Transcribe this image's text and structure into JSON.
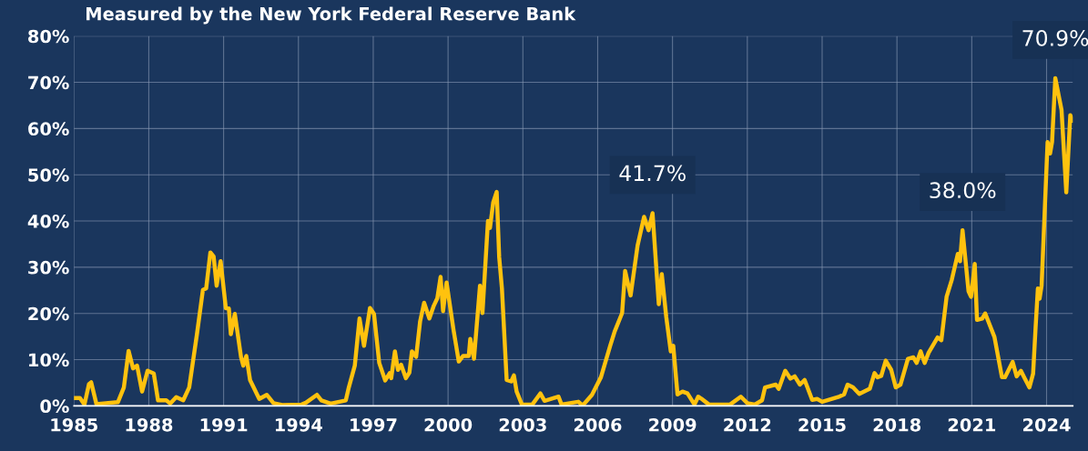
{
  "chart_data": {
    "type": "line",
    "title": "Measured by the New York Federal Reserve Bank",
    "x": [
      1985.0,
      1985.24,
      1985.42,
      1985.6,
      1985.69,
      1985.9,
      1986.76,
      1987.0,
      1987.19,
      1987.37,
      1987.53,
      1987.73,
      1987.95,
      1988.2,
      1988.37,
      1988.7,
      1988.86,
      1989.1,
      1989.38,
      1989.62,
      1989.93,
      1990.17,
      1990.3,
      1990.47,
      1990.6,
      1990.72,
      1990.88,
      1991.09,
      1991.21,
      1991.29,
      1991.45,
      1991.7,
      1991.79,
      1991.91,
      1992.06,
      1992.43,
      1992.73,
      1993.0,
      1993.35,
      1994.13,
      1994.3,
      1994.74,
      1994.92,
      1995.29,
      1995.9,
      1996.02,
      1996.26,
      1996.45,
      1996.63,
      1996.87,
      1997.03,
      1997.24,
      1997.48,
      1997.66,
      1997.72,
      1997.87,
      1997.99,
      1998.12,
      1998.31,
      1998.45,
      1998.55,
      1998.72,
      1998.88,
      1999.04,
      1999.25,
      1999.43,
      1999.57,
      1999.7,
      1999.8,
      1999.94,
      2000.22,
      2000.43,
      2000.6,
      2000.83,
      2000.89,
      2001.04,
      2001.28,
      2001.38,
      2001.6,
      2001.68,
      2001.81,
      2001.95,
      2002.05,
      2002.16,
      2002.35,
      2002.53,
      2002.64,
      2002.75,
      2002.96,
      2003.38,
      2003.7,
      2003.87,
      2004.43,
      2004.55,
      2005.22,
      2005.4,
      2005.77,
      2006.13,
      2006.5,
      2006.68,
      2006.98,
      2007.1,
      2007.32,
      2007.6,
      2007.86,
      2008.04,
      2008.2,
      2008.45,
      2008.57,
      2008.75,
      2008.93,
      2009.03,
      2009.2,
      2009.4,
      2009.6,
      2009.88,
      2010.03,
      2010.15,
      2010.46,
      2011.31,
      2011.74,
      2012.0,
      2012.3,
      2012.59,
      2012.71,
      2013.14,
      2013.26,
      2013.52,
      2013.73,
      2013.9,
      2014.11,
      2014.3,
      2014.6,
      2014.8,
      2015.0,
      2015.64,
      2015.88,
      2016.02,
      2016.24,
      2016.49,
      2016.91,
      2017.1,
      2017.22,
      2017.37,
      2017.55,
      2017.77,
      2017.95,
      2018.14,
      2018.44,
      2018.66,
      2018.79,
      2018.95,
      2019.11,
      2019.27,
      2019.63,
      2019.78,
      2019.99,
      2020.2,
      2020.44,
      2020.53,
      2020.63,
      2020.87,
      2020.97,
      2021.12,
      2021.21,
      2021.42,
      2021.54,
      2021.91,
      2022.21,
      2022.33,
      2022.64,
      2022.8,
      2022.97,
      2023.13,
      2023.31,
      2023.46,
      2023.56,
      2023.65,
      2023.72,
      2023.8,
      2024.04,
      2024.14,
      2024.22,
      2024.35,
      2024.51,
      2024.6,
      2024.79,
      2024.95,
      2025.05
    ],
    "series": [
      {
        "color": "#ffc20e",
        "values": [
          1.7,
          1.7,
          0.3,
          4.7,
          5.1,
          0.4,
          0.8,
          4.0,
          11.9,
          8.1,
          8.7,
          3.1,
          7.6,
          7.0,
          1.2,
          1.2,
          0.5,
          1.9,
          1.2,
          4.0,
          15.5,
          25.1,
          25.4,
          33.2,
          32.3,
          26.0,
          31.3,
          21.1,
          21.1,
          15.5,
          19.9,
          10.5,
          8.7,
          10.8,
          5.6,
          1.5,
          2.4,
          0.6,
          0.2,
          0.3,
          0.7,
          2.4,
          1.2,
          0.5,
          1.2,
          4.0,
          8.7,
          18.9,
          13.0,
          21.2,
          19.9,
          9.3,
          5.5,
          7.1,
          6.0,
          11.8,
          7.8,
          8.9,
          6.0,
          7.2,
          11.8,
          10.6,
          18.3,
          22.3,
          18.9,
          21.7,
          23.3,
          27.9,
          20.5,
          26.7,
          16.4,
          9.6,
          10.8,
          10.8,
          14.5,
          10.2,
          26.0,
          20.1,
          40.0,
          38.5,
          44.0,
          46.3,
          32.2,
          25.4,
          5.6,
          5.3,
          6.6,
          3.1,
          0.3,
          0.3,
          2.7,
          1.1,
          2.0,
          0.3,
          0.9,
          0.1,
          2.4,
          6.2,
          13.0,
          16.1,
          20.1,
          29.2,
          23.9,
          34.7,
          40.9,
          38.0,
          41.7,
          22.0,
          28.5,
          19.2,
          11.8,
          13.0,
          2.5,
          3.1,
          2.7,
          0.3,
          2.0,
          1.6,
          0.3,
          0.3,
          2.0,
          0.6,
          0.3,
          1.2,
          4.0,
          4.6,
          3.7,
          7.6,
          5.9,
          6.4,
          4.6,
          5.6,
          1.3,
          1.5,
          0.9,
          1.9,
          2.5,
          4.6,
          4.0,
          2.6,
          3.7,
          7.1,
          6.2,
          6.5,
          9.8,
          7.8,
          4.0,
          4.6,
          10.2,
          10.5,
          9.3,
          11.8,
          9.3,
          11.5,
          14.8,
          14.2,
          23.6,
          27.3,
          32.9,
          31.3,
          38.0,
          24.8,
          23.6,
          30.7,
          18.6,
          18.9,
          20.0,
          14.9,
          6.2,
          6.2,
          9.5,
          6.4,
          7.6,
          5.9,
          4.0,
          7.0,
          17.0,
          25.4,
          23.2,
          26.0,
          57.1,
          54.6,
          57.1,
          70.9,
          66.5,
          64.0,
          46.2,
          62.9,
          61.7
        ]
      }
    ],
    "xlim": [
      1985,
      2025.05
    ],
    "xticks": [
      1985,
      1988,
      1991,
      1994,
      1997,
      2000,
      2003,
      2006,
      2009,
      2012,
      2015,
      2018,
      2021,
      2024
    ],
    "ylim": [
      0,
      80
    ],
    "yticks": [
      {
        "value": 0,
        "label": "0%"
      },
      {
        "value": 10,
        "label": "10%"
      },
      {
        "value": 20,
        "label": "20%"
      },
      {
        "value": 30,
        "label": "30%"
      },
      {
        "value": 40,
        "label": "40%"
      },
      {
        "value": 50,
        "label": "50%"
      },
      {
        "value": 60,
        "label": "60%"
      },
      {
        "value": 70,
        "label": "70%"
      },
      {
        "value": 80,
        "label": "80%"
      }
    ],
    "annotations": [
      {
        "text": "41.7%",
        "x": 2008.2,
        "y": 41.7
      },
      {
        "text": "38.0%",
        "x": 2020.63,
        "y": 38.0
      },
      {
        "text": "70.9%",
        "x": 2024.35,
        "y": 70.9
      }
    ],
    "grid": true,
    "legend": false,
    "marker": "none",
    "line_style": "solid"
  }
}
